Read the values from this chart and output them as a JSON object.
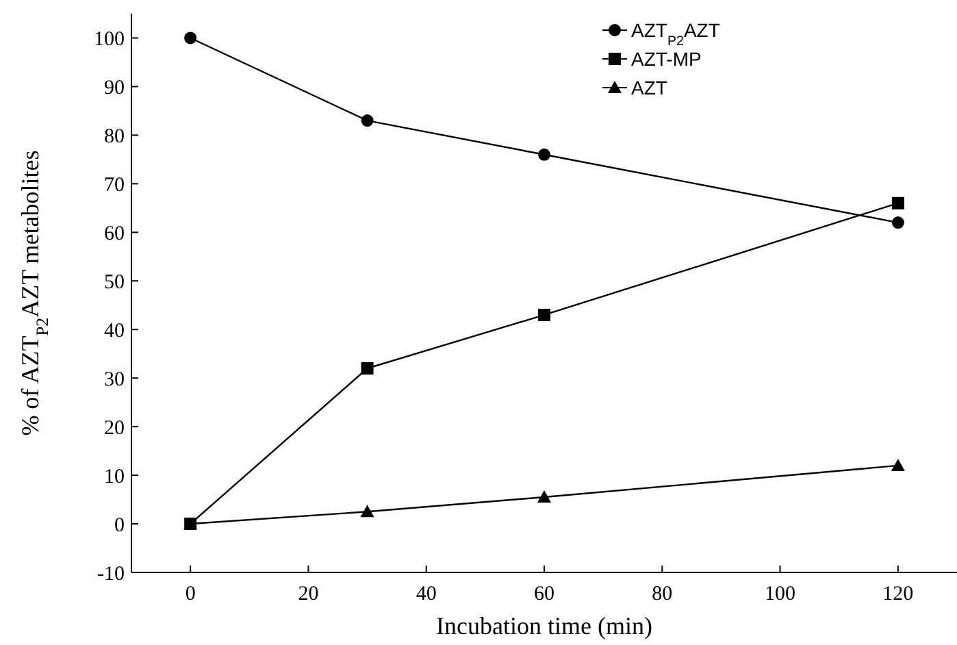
{
  "chart_data": {
    "type": "line",
    "xlabel": "Incubation time (min)",
    "ylabel": "% of AZT$_{P2}$AZT metabolites",
    "x": [
      0,
      30,
      60,
      120
    ],
    "xlim": [
      -10,
      130
    ],
    "xticks": [
      0,
      20,
      40,
      60,
      80,
      100,
      120
    ],
    "ylim": [
      -10,
      105
    ],
    "yticks": [
      -10,
      0,
      10,
      20,
      30,
      40,
      50,
      60,
      70,
      80,
      90,
      100
    ],
    "legend": "top right",
    "grid": false,
    "line_style": "solid",
    "series": [
      {
        "name": "AZT$_{P2}$AZT",
        "color": "#000000",
        "marker": "circle",
        "values": [
          100,
          83,
          76,
          62
        ]
      },
      {
        "name": "AZT-MP",
        "color": "#000000",
        "marker": "square",
        "values": [
          0,
          32,
          43,
          66
        ]
      },
      {
        "name": "AZT",
        "color": "#000000",
        "marker": "triangle",
        "values": [
          0,
          2.5,
          5.5,
          12
        ]
      }
    ]
  }
}
